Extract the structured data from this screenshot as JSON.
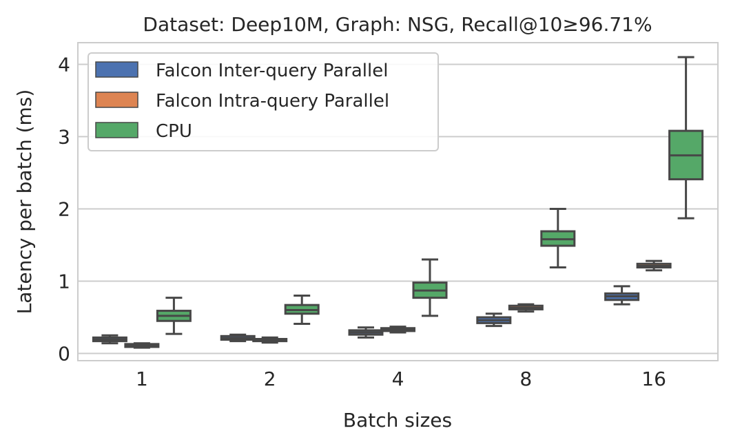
{
  "chart_data": {
    "type": "box",
    "title": "Dataset: Deep10M, Graph: NSG, Recall@10≥96.71%",
    "xlabel": "Batch sizes",
    "ylabel": "Latency per batch (ms)",
    "categories": [
      "1",
      "2",
      "4",
      "8",
      "16"
    ],
    "ylim": [
      -0.1,
      4.3
    ],
    "yticks": [
      0,
      1,
      2,
      3,
      4
    ],
    "grid": true,
    "legend_position": "top-left",
    "series": [
      {
        "name": "Falcon Inter-query Parallel",
        "color": "#4c72b0",
        "boxes": [
          {
            "whislo": 0.14,
            "q1": 0.17,
            "med": 0.19,
            "q3": 0.22,
            "whishi": 0.25
          },
          {
            "whislo": 0.17,
            "q1": 0.19,
            "med": 0.21,
            "q3": 0.24,
            "whishi": 0.26
          },
          {
            "whislo": 0.22,
            "q1": 0.26,
            "med": 0.29,
            "q3": 0.32,
            "whishi": 0.36
          },
          {
            "whislo": 0.38,
            "q1": 0.42,
            "med": 0.46,
            "q3": 0.5,
            "whishi": 0.55
          },
          {
            "whislo": 0.68,
            "q1": 0.74,
            "med": 0.79,
            "q3": 0.83,
            "whishi": 0.93
          }
        ]
      },
      {
        "name": "Falcon Intra-query Parallel",
        "color": "#dd8452",
        "boxes": [
          {
            "whislo": 0.08,
            "q1": 0.09,
            "med": 0.11,
            "q3": 0.13,
            "whishi": 0.14
          },
          {
            "whislo": 0.15,
            "q1": 0.17,
            "med": 0.18,
            "q3": 0.2,
            "whishi": 0.22
          },
          {
            "whislo": 0.29,
            "q1": 0.31,
            "med": 0.33,
            "q3": 0.35,
            "whishi": 0.37
          },
          {
            "whislo": 0.58,
            "q1": 0.61,
            "med": 0.63,
            "q3": 0.66,
            "whishi": 0.68
          },
          {
            "whislo": 1.15,
            "q1": 1.19,
            "med": 1.21,
            "q3": 1.24,
            "whishi": 1.28
          }
        ]
      },
      {
        "name": "CPU",
        "color": "#55a868",
        "boxes": [
          {
            "whislo": 0.27,
            "q1": 0.45,
            "med": 0.52,
            "q3": 0.59,
            "whishi": 0.77
          },
          {
            "whislo": 0.41,
            "q1": 0.55,
            "med": 0.6,
            "q3": 0.67,
            "whishi": 0.8
          },
          {
            "whislo": 0.52,
            "q1": 0.77,
            "med": 0.87,
            "q3": 0.98,
            "whishi": 1.3
          },
          {
            "whislo": 1.19,
            "q1": 1.49,
            "med": 1.58,
            "q3": 1.69,
            "whishi": 2.0
          },
          {
            "whislo": 1.87,
            "q1": 2.41,
            "med": 2.74,
            "q3": 3.08,
            "whishi": 4.1
          }
        ]
      }
    ]
  }
}
